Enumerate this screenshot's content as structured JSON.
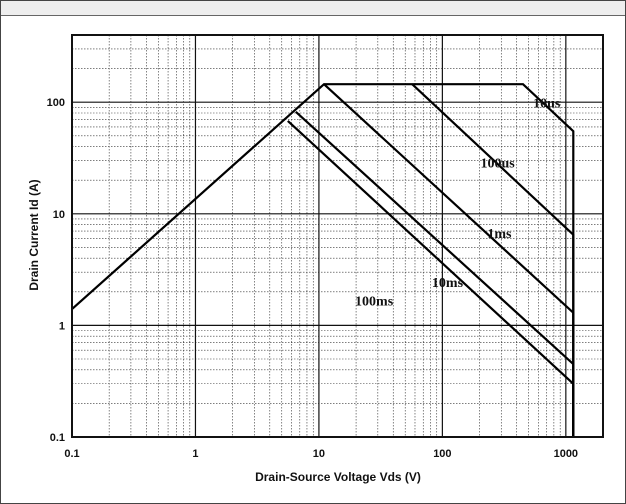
{
  "chart_data": {
    "type": "line",
    "xlabel": "Drain-Source Voltage Vds (V)",
    "ylabel": "Drain Current Id (A)",
    "x_scale": "log",
    "y_scale": "log",
    "xlim": [
      0.1,
      2000
    ],
    "ylim": [
      0.1,
      400
    ],
    "x_ticks": [
      {
        "value": 0.1,
        "label": "0.1"
      },
      {
        "value": 1,
        "label": "1"
      },
      {
        "value": 10,
        "label": "10"
      },
      {
        "value": 100,
        "label": "100"
      },
      {
        "value": 1000,
        "label": "1000"
      }
    ],
    "y_ticks": [
      {
        "value": 0.1,
        "label": "0.1"
      },
      {
        "value": 1,
        "label": "1"
      },
      {
        "value": 10,
        "label": "10"
      },
      {
        "value": 100,
        "label": "100"
      }
    ],
    "grid": true,
    "series": [
      {
        "name": "10us",
        "label_at": [
          700,
          90
        ],
        "x": [
          0.1,
          11,
          450,
          1150,
          1150
        ],
        "y": [
          1.4,
          145,
          145,
          55,
          0.1
        ]
      },
      {
        "name": "100us",
        "label_at": [
          280,
          26
        ],
        "x": [
          57,
          1150,
          1150
        ],
        "y": [
          145,
          6.5,
          0.1
        ]
      },
      {
        "name": "1ms",
        "label_at": [
          290,
          6.1
        ],
        "x": [
          11,
          1150,
          1150
        ],
        "y": [
          145,
          1.3,
          0.1
        ]
      },
      {
        "name": "10ms",
        "label_at": [
          110,
          2.2
        ],
        "x": [
          6.5,
          1150,
          1150
        ],
        "y": [
          82,
          0.45,
          0.1
        ]
      },
      {
        "name": "100ms",
        "label_at": [
          28,
          1.5
        ],
        "x": [
          5.6,
          1150,
          1150
        ],
        "y": [
          68,
          0.3,
          0.1
        ]
      }
    ]
  }
}
